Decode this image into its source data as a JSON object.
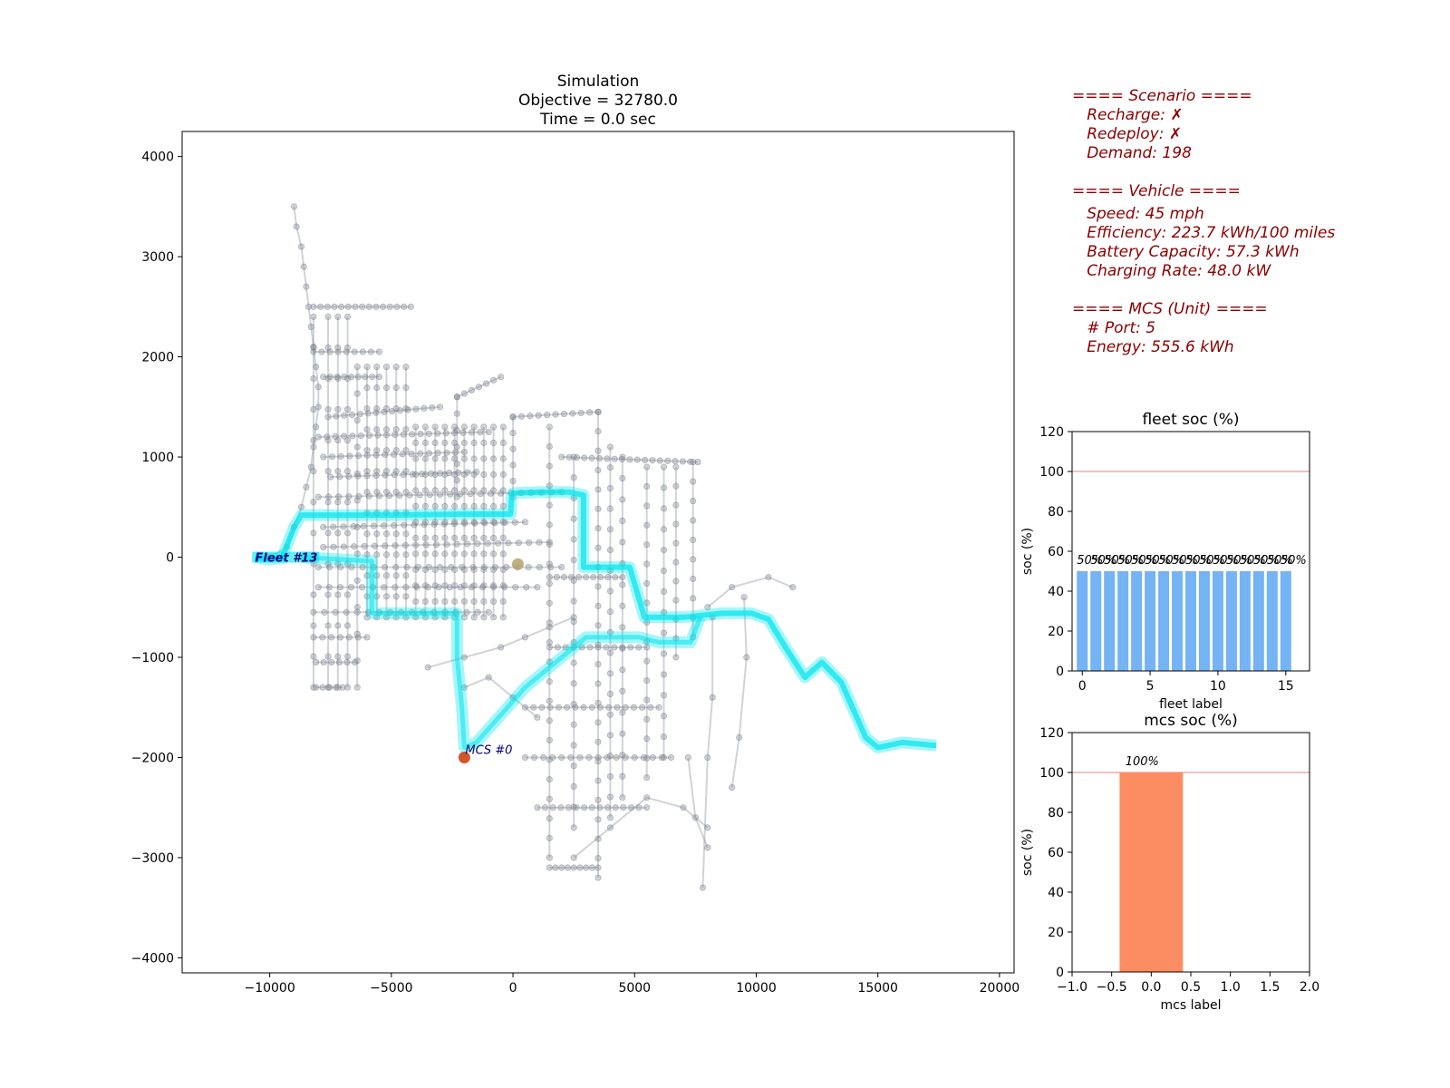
{
  "map": {
    "title_lines": [
      "Simulation",
      "Objective = 32780.0",
      "Time = 0.0 sec"
    ],
    "xlim": [
      -13600,
      20600
    ],
    "ylim": [
      -4150,
      4250
    ],
    "xticks": [
      -10000,
      -5000,
      0,
      5000,
      10000,
      15000,
      20000
    ],
    "xtick_labels": [
      "−10000",
      "−5000",
      "0",
      "5000",
      "10000",
      "15000",
      "20000"
    ],
    "yticks": [
      4000,
      3000,
      2000,
      1000,
      0,
      -1000,
      -2000,
      -3000,
      -4000
    ],
    "ytick_labels": [
      "4000",
      "3000",
      "2000",
      "1000",
      "0",
      "−1000",
      "−2000",
      "−3000",
      "−4000"
    ],
    "fleet_label": "Fleet #13",
    "mcs_label": "MCS #0",
    "colors": {
      "network": "#7a828c",
      "route": "#00e5ee",
      "mcs_dot": "#d2552e",
      "depot_dot": "#b5a36a",
      "label": "#000080"
    }
  },
  "scenario_text": [
    "==== Scenario ====",
    "   Recharge: ✗",
    "   Redeploy: ✗",
    "   Demand: 198",
    "",
    "==== Vehicle ====",
    "   Speed: 45 mph",
    "   Efficiency: 223.7 kWh/100 miles",
    "   Battery Capacity: 57.3 kWh",
    "   Charging Rate: 48.0 kW",
    "",
    "==== MCS (Unit) ====",
    "   # Port: 5",
    "   Energy: 555.6 kWh"
  ],
  "chart_data": [
    {
      "type": "bar",
      "title": "fleet soc (%)",
      "xlabel": "fleet label",
      "ylabel": "soc (%)",
      "x": [
        0,
        1,
        2,
        3,
        4,
        5,
        6,
        7,
        8,
        9,
        10,
        11,
        12,
        13,
        14,
        15
      ],
      "values": [
        50,
        50,
        50,
        50,
        50,
        50,
        50,
        50,
        50,
        50,
        50,
        50,
        50,
        50,
        50,
        50
      ],
      "data_label": "50%",
      "xlim": [
        -0.75,
        16.75
      ],
      "ylim": [
        0,
        120
      ],
      "xticks": [
        0,
        5,
        10,
        15
      ],
      "yticks": [
        0,
        20,
        40,
        60,
        80,
        100,
        120
      ],
      "reference_line": 100,
      "color": "#74b3f4"
    },
    {
      "type": "bar",
      "title": "mcs soc (%)",
      "xlabel": "mcs label",
      "ylabel": "soc (%)",
      "x": [
        0
      ],
      "values": [
        100
      ],
      "data_label": "100%",
      "xlim": [
        -1.0,
        2.0
      ],
      "ylim": [
        0,
        120
      ],
      "xticks": [
        -1.0,
        -0.5,
        0.0,
        0.5,
        1.0,
        1.5,
        2.0
      ],
      "xtick_labels": [
        "−1.0",
        "−0.5",
        "0.0",
        "0.5",
        "1.0",
        "1.5",
        "2.0"
      ],
      "yticks": [
        0,
        20,
        40,
        60,
        80,
        100,
        120
      ],
      "reference_line": 100,
      "color": "#fc8d62"
    }
  ]
}
